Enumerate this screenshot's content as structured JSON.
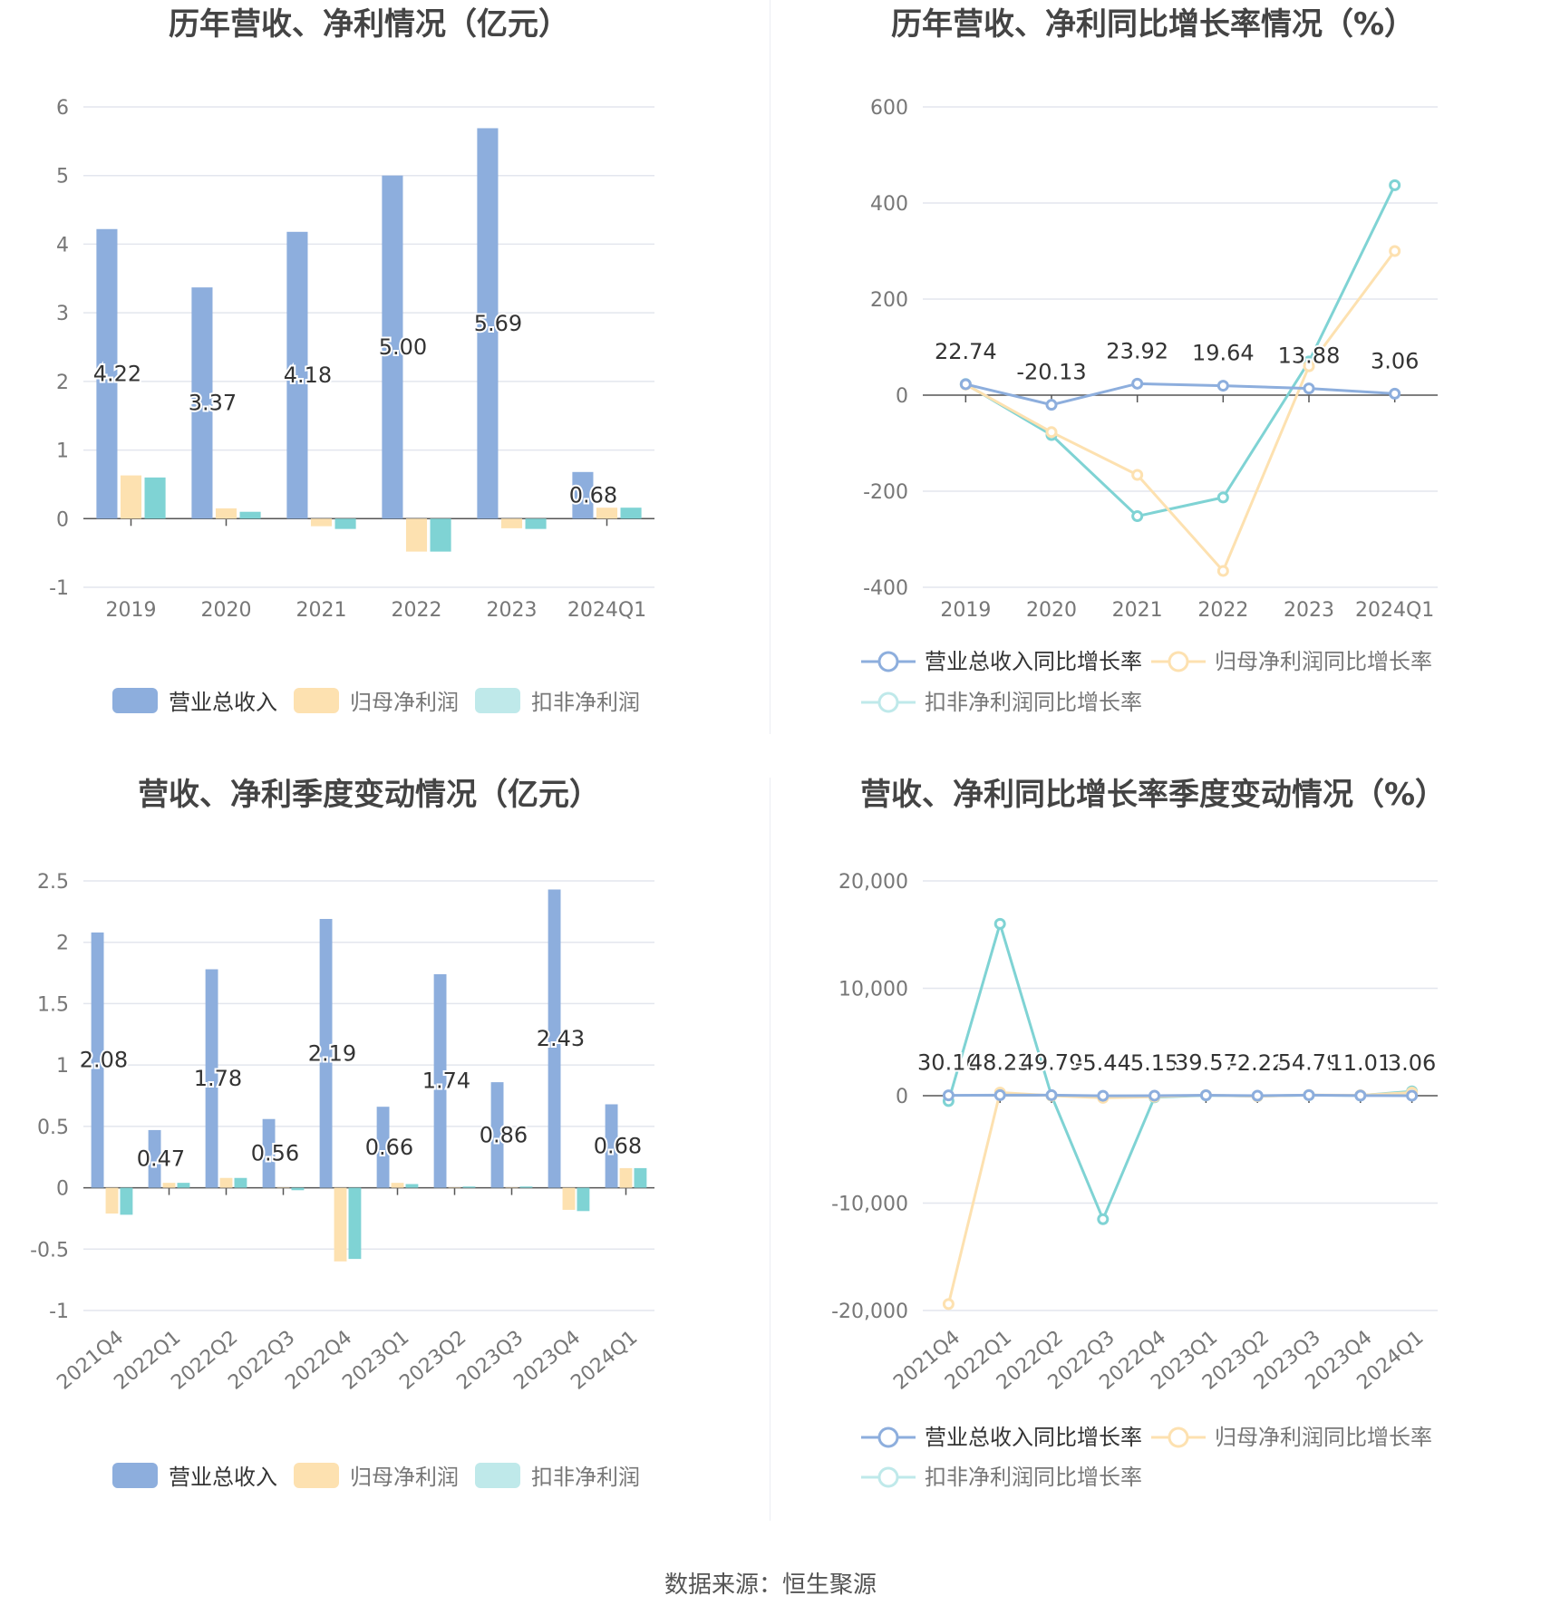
{
  "source_label": "数据来源：恒生聚源",
  "colors": {
    "revenue": "#8daedd",
    "net_profit": "#fde1b0",
    "deducted_profit": "#7fd3d4",
    "deducted_legend": "#bfe9ea",
    "grid": "#e3e6ee",
    "axis": "#555555",
    "tick": "#777777",
    "title": "#444444",
    "label": "#333333"
  },
  "chart_data": [
    {
      "type": "bar",
      "title": "历年营收、净利情况（亿元）",
      "categories": [
        "2019",
        "2020",
        "2021",
        "2022",
        "2023",
        "2024Q1"
      ],
      "ylim": [
        -1,
        6
      ],
      "yticks": [
        "6",
        "5",
        "4",
        "3",
        "2",
        "1",
        "0",
        "-1"
      ],
      "ytick_values": [
        6,
        5,
        4,
        3,
        2,
        1,
        0,
        -1
      ],
      "series": [
        {
          "name": "营业总收入",
          "values": [
            4.22,
            3.37,
            4.18,
            5.0,
            5.69,
            0.68
          ]
        },
        {
          "name": "归母净利润",
          "values": [
            0.63,
            0.15,
            -0.11,
            -0.48,
            -0.14,
            0.16
          ]
        },
        {
          "name": "扣非净利润",
          "values": [
            0.6,
            0.1,
            -0.15,
            -0.48,
            -0.15,
            0.16
          ]
        }
      ],
      "data_labels": [
        "4.22",
        "3.37",
        "4.18",
        "5.00",
        "5.69",
        "0.68"
      ],
      "legend": [
        "营业总收入",
        "归母净利润",
        "扣非净利润"
      ]
    },
    {
      "type": "line",
      "title": "历年营收、净利同比增长率情况（%）",
      "categories": [
        "2019",
        "2020",
        "2021",
        "2022",
        "2023",
        "2024Q1"
      ],
      "ylim": [
        -400,
        600
      ],
      "yticks": [
        "600",
        "400",
        "200",
        "0",
        "-200",
        "-400"
      ],
      "ytick_values": [
        600,
        400,
        200,
        0,
        -200,
        -400
      ],
      "series": [
        {
          "name": "营业总收入同比增长率",
          "values": [
            22.74,
            -20.13,
            23.92,
            19.64,
            13.88,
            3.06
          ]
        },
        {
          "name": "归母净利润同比增长率",
          "values": [
            22,
            -77,
            -166,
            -366,
            60,
            300
          ]
        },
        {
          "name": "扣非净利润同比增长率",
          "values": [
            23,
            -83,
            -252,
            -213,
            70,
            437
          ]
        }
      ],
      "data_labels": [
        "22.74",
        "-20.13",
        "23.92",
        "19.64",
        "13.88",
        "3.06"
      ],
      "legend": [
        "营业总收入同比增长率",
        "归母净利润同比增长率",
        "扣非净利润同比增长率"
      ]
    },
    {
      "type": "bar",
      "title": "营收、净利季度变动情况（亿元）",
      "categories": [
        "2021Q4",
        "2022Q1",
        "2022Q2",
        "2022Q3",
        "2022Q4",
        "2023Q1",
        "2023Q2",
        "2023Q3",
        "2023Q4",
        "2024Q1"
      ],
      "ylim": [
        -1,
        2.5
      ],
      "yticks": [
        "2.5",
        "2",
        "1.5",
        "1",
        "0.5",
        "0",
        "-0.5",
        "-1"
      ],
      "ytick_values": [
        2.5,
        2,
        1.5,
        1,
        0.5,
        0,
        -0.5,
        -1
      ],
      "series": [
        {
          "name": "营业总收入",
          "values": [
            2.08,
            0.47,
            1.78,
            0.56,
            2.19,
            0.66,
            1.74,
            0.86,
            2.43,
            0.68
          ]
        },
        {
          "name": "归母净利润",
          "values": [
            -0.21,
            0.04,
            0.08,
            0.0,
            -0.6,
            0.04,
            0.0,
            0.0,
            -0.18,
            0.16
          ]
        },
        {
          "name": "扣非净利润",
          "values": [
            -0.22,
            0.04,
            0.08,
            -0.02,
            -0.58,
            0.03,
            0.01,
            0.01,
            -0.19,
            0.16
          ]
        }
      ],
      "data_labels": [
        "2.08",
        "0.47",
        "1.78",
        "0.56",
        "2.19",
        "0.66",
        "1.74",
        "0.86",
        "2.43",
        "0.68"
      ],
      "legend": [
        "营业总收入",
        "归母净利润",
        "扣非净利润"
      ]
    },
    {
      "type": "line",
      "title": "营收、净利同比增长率季度变动情况（%）",
      "categories": [
        "2021Q4",
        "2022Q1",
        "2022Q2",
        "2022Q3",
        "2022Q4",
        "2023Q1",
        "2023Q2",
        "2023Q3",
        "2023Q4",
        "2024Q1"
      ],
      "ylim": [
        -20000,
        20000
      ],
      "yticks": [
        "20,000",
        "10,000",
        "0",
        "-10,000",
        "-20,000"
      ],
      "ytick_values": [
        20000,
        10000,
        0,
        -10000,
        -20000
      ],
      "series": [
        {
          "name": "营业总收入同比增长率",
          "values": [
            30.16,
            48.23,
            49.79,
            -5.44,
            5.15,
            39.57,
            -2.22,
            54.79,
            11.01,
            3.06
          ]
        },
        {
          "name": "归母净利润同比增长率",
          "values": [
            -19400,
            300,
            0,
            -200,
            -100,
            50,
            -50,
            60,
            40,
            300
          ]
        },
        {
          "name": "扣非净利润同比增长率",
          "values": [
            -500,
            16000,
            0,
            -11500,
            -150,
            30,
            -40,
            50,
            20,
            400
          ]
        }
      ],
      "data_labels": [
        "30.16",
        "48.23",
        "49.79",
        "-5.44",
        "5.15",
        "39.57",
        "-2.22",
        "54.79",
        "11.01",
        "3.06"
      ],
      "legend": [
        "营业总收入同比增长率",
        "归母净利润同比增长率",
        "扣非净利润同比增长率"
      ]
    }
  ]
}
